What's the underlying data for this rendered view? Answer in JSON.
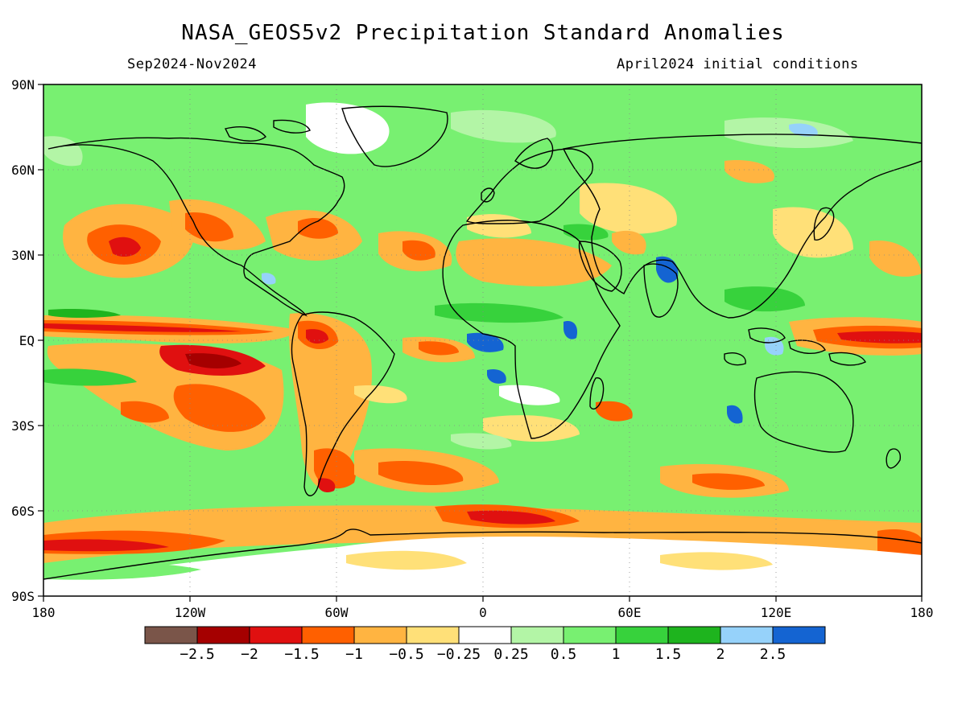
{
  "header": {
    "title": "NASA_GEOS5v2 Precipitation Standard Anomalies",
    "period": "Sep2024-Nov2024",
    "init": "April2024 initial conditions"
  },
  "map": {
    "lon_ticks": [
      "180",
      "120W",
      "60W",
      "0",
      "60E",
      "120E",
      "180"
    ],
    "lat_ticks": [
      "90N",
      "60N",
      "30N",
      "EQ",
      "30S",
      "60S",
      "90S"
    ]
  },
  "colorbar": {
    "colors": [
      "#7a5549",
      "#a50000",
      "#e01010",
      "#ff6000",
      "#ffb441",
      "#ffe078",
      "#ffffff",
      "#b3f5a6",
      "#78f071",
      "#37d23c",
      "#1eb41e",
      "#96d2fa",
      "#1464d2"
    ],
    "labels": [
      "−2.5",
      "−2",
      "−1.5",
      "−1",
      "−0.5",
      "−0.25",
      "0.25",
      "0.5",
      "1",
      "1.5",
      "2",
      "2.5"
    ]
  },
  "colors": {
    "land_outline": "#000000",
    "base_green": "#78f071"
  }
}
